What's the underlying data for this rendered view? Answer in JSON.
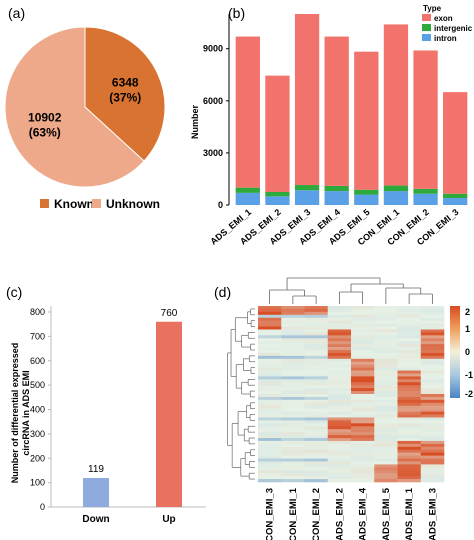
{
  "panels": {
    "a": "(a)",
    "b": "(b)",
    "c": "(c)",
    "d": "(d)"
  },
  "colors": {
    "known": "#d97332",
    "unknown": "#eda98a",
    "exon": "#f2736b",
    "intergenic": "#2eaa3c",
    "intron": "#5aa0e6",
    "down": "#8eaade",
    "up": "#e8715f",
    "heat_low": "#4a84c4",
    "heat_mid": "#e6f1e6",
    "heat_high": "#d94a20"
  },
  "chart_data": [
    {
      "id": "a",
      "type": "pie",
      "slices": [
        {
          "label": "Known",
          "value": 6348,
          "value_text": "6348",
          "pct_text": "(37%)"
        },
        {
          "label": "Unknown",
          "value": 10902,
          "value_text": "10902",
          "pct_text": "(63%)"
        }
      ],
      "legend": [
        "Known",
        "Unknown"
      ],
      "legend_position": "bottom"
    },
    {
      "id": "b",
      "type": "bar",
      "stacked": true,
      "categories": [
        "ADS_EMI_1",
        "ADS_EMI_2",
        "ADS_EMI_3",
        "ADS_EMI_4",
        "ADS_EMI_5",
        "CON_EMI_1",
        "CON_EMI_2",
        "CON_EMI_3"
      ],
      "series": [
        {
          "name": "intron",
          "values": [
            700,
            500,
            850,
            800,
            600,
            800,
            650,
            400
          ]
        },
        {
          "name": "intergenic",
          "values": [
            300,
            250,
            300,
            300,
            280,
            320,
            280,
            250
          ]
        },
        {
          "name": "exon",
          "values": [
            8700,
            6700,
            9850,
            8600,
            7950,
            9280,
            7970,
            5850
          ]
        }
      ],
      "ylabel": "Number",
      "yticks": [
        0,
        3000,
        6000,
        9000
      ],
      "ylim": [
        0,
        11000
      ],
      "legend_title": "Type",
      "legend": [
        "exon",
        "intergenic",
        "intron"
      ],
      "legend_position": "top-right"
    },
    {
      "id": "c",
      "type": "bar",
      "categories": [
        "Down",
        "Up"
      ],
      "values": [
        119,
        760
      ],
      "value_labels": [
        "119",
        "760"
      ],
      "ylabel": "Number of differential expressed circRNA in ADS EMI",
      "yticks": [
        0,
        100,
        200,
        300,
        400,
        500,
        600,
        700,
        800
      ],
      "ylim": [
        0,
        800
      ]
    },
    {
      "id": "d",
      "type": "heatmap",
      "columns": [
        "CON_EMI_3",
        "CON_EMI_1",
        "CON_EMI_2",
        "ADS_EMI_2",
        "ADS_EMI_4",
        "ADS_EMI_5",
        "ADS_EMI_1",
        "ADS_EMI_3"
      ],
      "colorbar_ticks": [
        "2",
        "1",
        "0",
        "-1",
        "-2"
      ],
      "range": [
        -2,
        2
      ]
    }
  ]
}
